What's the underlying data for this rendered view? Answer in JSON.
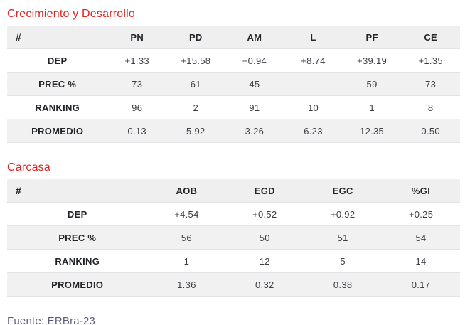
{
  "colors": {
    "title_red": "#e3231e",
    "header_bg": "#efeff0",
    "stripe_bg": "#f1f1f2",
    "border": "#e3e3e6",
    "text_dark": "#212428",
    "text_value": "#3b3e44",
    "footer_text": "#5c5e7e"
  },
  "tables": [
    {
      "title": "Crecimiento y Desarrollo",
      "corner": "#",
      "columns": [
        "PN",
        "PD",
        "AM",
        "L",
        "PF",
        "CE"
      ],
      "rows": [
        {
          "label": "DEP",
          "values": [
            "+1.33",
            "+15.58",
            "+0.94",
            "+8.74",
            "+39.19",
            "+1.35"
          ]
        },
        {
          "label": "PREC %",
          "values": [
            "73",
            "61",
            "45",
            "–",
            "59",
            "73"
          ]
        },
        {
          "label": "RANKING",
          "values": [
            "96",
            "2",
            "91",
            "10",
            "1",
            "8"
          ]
        },
        {
          "label": "PROMEDIO",
          "values": [
            "0.13",
            "5.92",
            "3.26",
            "6.23",
            "12.35",
            "0.50"
          ]
        }
      ]
    },
    {
      "title": "Carcasa",
      "corner": "#",
      "columns": [
        "AOB",
        "EGD",
        "EGC",
        "%GI"
      ],
      "rows": [
        {
          "label": "DEP",
          "values": [
            "+4.54",
            "+0.52",
            "+0.92",
            "+0.25"
          ]
        },
        {
          "label": "PREC %",
          "values": [
            "56",
            "50",
            "51",
            "54"
          ]
        },
        {
          "label": "RANKING",
          "values": [
            "1",
            "12",
            "5",
            "14"
          ]
        },
        {
          "label": "PROMEDIO",
          "values": [
            "1.36",
            "0.32",
            "0.38",
            "0.17"
          ]
        }
      ]
    }
  ],
  "footer": {
    "text": "Fuente: ERBra-23"
  }
}
